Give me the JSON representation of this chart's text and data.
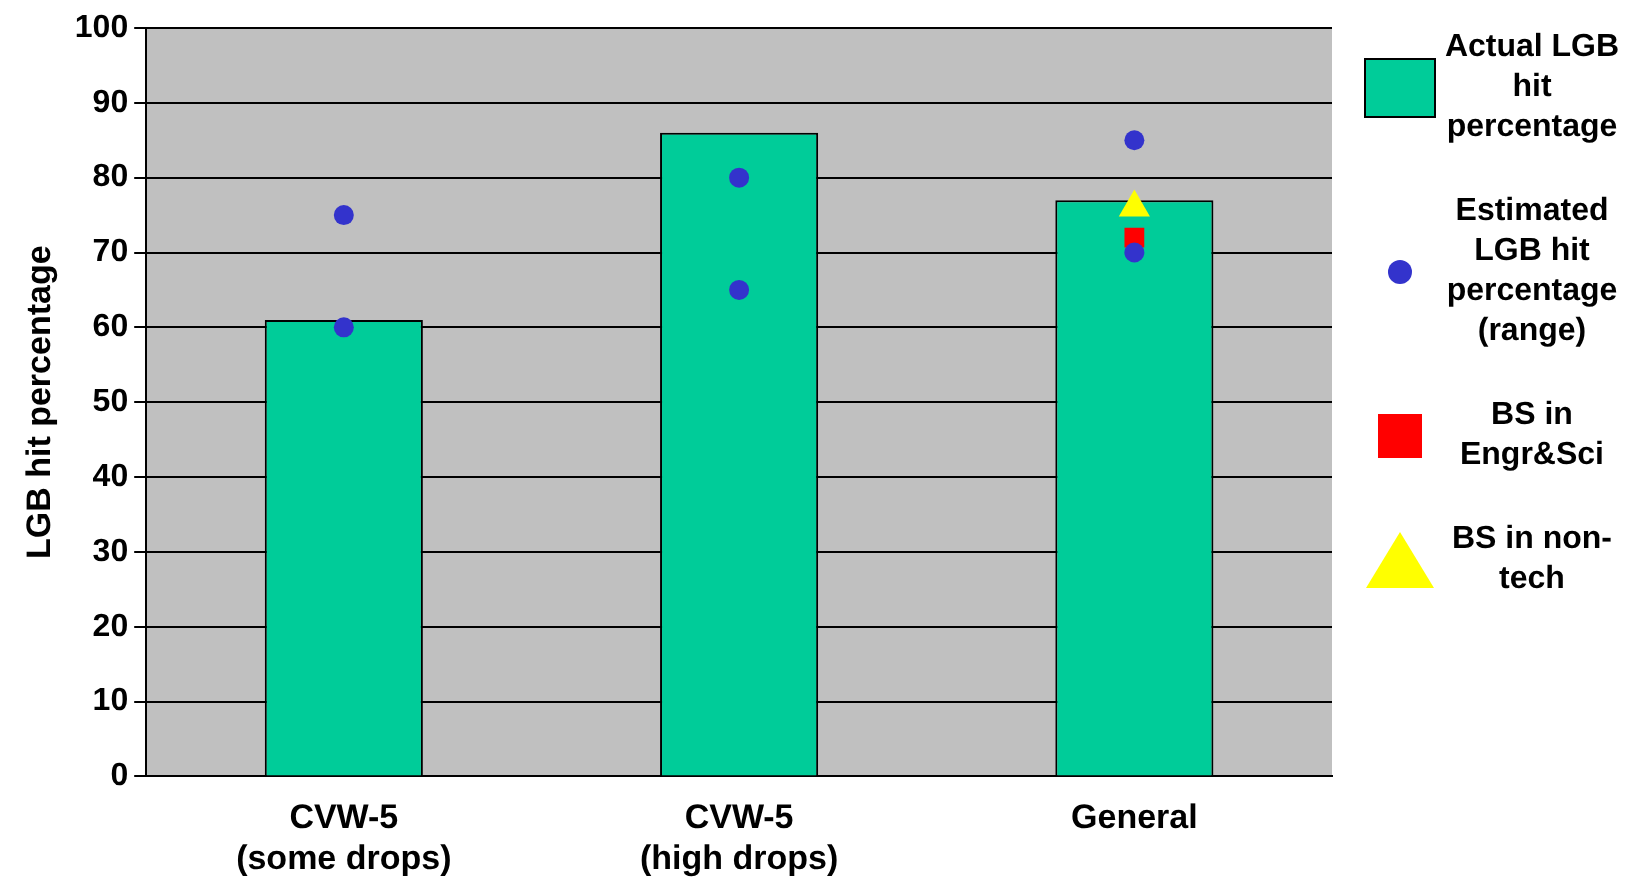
{
  "chart_data": {
    "type": "bar",
    "ylabel": "LGB hit percentage",
    "categories": [
      "CVW-5\n(some drops)",
      "CVW-5\n(high drops)",
      "General"
    ],
    "ylim": [
      0,
      100
    ],
    "yticks": [
      0,
      10,
      20,
      30,
      40,
      50,
      60,
      70,
      80,
      90,
      100
    ],
    "grid": "y",
    "legend": "right",
    "series": [
      {
        "name": "Actual LGB hit percentage",
        "color": "#00cc99",
        "values": [
          61,
          86,
          77
        ]
      },
      {
        "name": "Estimated LGB hit percentage (range)",
        "type": "scatter",
        "marker": "circle",
        "color": "#3333cc",
        "x": [
          "CVW-5\n(some drops)",
          "CVW-5\n(some drops)",
          "CVW-5\n(high drops)",
          "CVW-5\n(high drops)",
          "General",
          "General"
        ],
        "values": [
          60,
          75,
          65,
          80,
          70,
          85
        ]
      },
      {
        "name": "BS in Engr&Sci",
        "type": "scatter",
        "marker": "square",
        "color": "#ff0000",
        "x": [
          "General"
        ],
        "values": [
          72
        ]
      },
      {
        "name": "BS in non-tech",
        "type": "scatter",
        "marker": "triangle",
        "color": "#ffff00",
        "x": [
          "General"
        ],
        "values": [
          76
        ]
      }
    ]
  }
}
